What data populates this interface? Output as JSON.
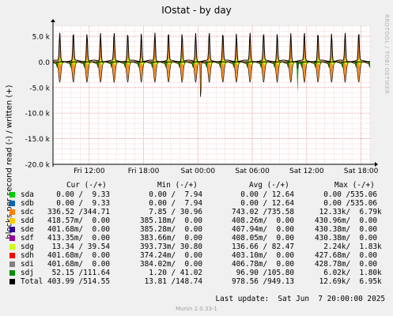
{
  "title": "IOstat - by day",
  "watermark": "RRDTOOL / TOBI OETIKER",
  "chart_data": {
    "type": "line",
    "ylabel": "blocks per second read (-) / written (+)",
    "ylim": [
      -20000,
      7000
    ],
    "yticks": [
      {
        "v": 5000,
        "label": "5.0 k"
      },
      {
        "v": 0,
        "label": "0.0"
      },
      {
        "v": -5000,
        "label": "-5.0 k"
      },
      {
        "v": -10000,
        "label": "-10.0 k"
      },
      {
        "v": -15000,
        "label": "-15.0 k"
      },
      {
        "v": -20000,
        "label": "-20.0 k"
      }
    ],
    "xticks": [
      "Fri 12:00",
      "Fri 18:00",
      "Sat 00:00",
      "Sat 06:00",
      "Sat 12:00",
      "Sat 18:00"
    ],
    "xlim_hours": [
      -4,
      31
    ],
    "xtick_hours": [
      0,
      6,
      12,
      18,
      24,
      30
    ],
    "grid": true,
    "spike_period_hours": 1.5,
    "total_write_peak": 5500,
    "sdc_read_peak": -4000,
    "sdc_read_max_spike": {
      "hour": 12.3,
      "value": -12300
    },
    "sdj_read_min_spike": {
      "hour": 23.0,
      "value": -6000
    }
  },
  "legend": {
    "headers": {
      "cur": "Cur (-/+)",
      "min": "Min (-/+)",
      "avg": "Avg (-/+)",
      "max": "Max (-/+)"
    },
    "rows": [
      {
        "name": "sda",
        "color": "#00cc00",
        "cur": "  0.00 /  9.33",
        "min": "  0.00 /  7.94",
        "avg": "  0.00 / 12.64",
        "max": "  0.00 /535.06"
      },
      {
        "name": "sdb",
        "color": "#0066b3",
        "cur": "  0.00 /  9.33",
        "min": "  0.00 /  7.94",
        "avg": "  0.00 / 12.64",
        "max": "  0.00 /535.06"
      },
      {
        "name": "sdc",
        "color": "#ff8000",
        "cur": "336.52 /344.71",
        "min": "  7.85 / 30.96",
        "avg": "743.02 /735.58",
        "max": " 12.33k/  6.79k"
      },
      {
        "name": "sdd",
        "color": "#ffcc00",
        "cur": "418.57m/  0.00",
        "min": "385.18m/  0.00",
        "avg": "408.26m/  0.00",
        "max": "430.96m/  0.00"
      },
      {
        "name": "sde",
        "color": "#330099",
        "cur": "401.68m/  0.00",
        "min": "385.28m/  0.00",
        "avg": "407.94m/  0.00",
        "max": "430.38m/  0.00"
      },
      {
        "name": "sdf",
        "color": "#990099",
        "cur": "413.35m/  0.00",
        "min": "383.66m/  0.00",
        "avg": "408.05m/  0.00",
        "max": "430.38m/  0.00"
      },
      {
        "name": "sdg",
        "color": "#ccff00",
        "cur": " 13.34 / 39.54",
        "min": "393.73m/ 30.80",
        "avg": "136.66 / 82.47",
        "max": "  2.24k/  1.83k"
      },
      {
        "name": "sdh",
        "color": "#ff0000",
        "cur": "401.68m/  0.00",
        "min": "374.24m/  0.00",
        "avg": "403.10m/  0.00",
        "max": "427.68m/  0.00"
      },
      {
        "name": "sdi",
        "color": "#808080",
        "cur": "401.68m/  0.00",
        "min": "384.02m/  0.00",
        "avg": "406.78m/  0.00",
        "max": "428.78m/  0.00"
      },
      {
        "name": "sdj",
        "color": "#008f00",
        "cur": " 52.15 /111.64",
        "min": "  1.20 / 41.02",
        "avg": " 96.90 /105.80",
        "max": "  6.02k/  1.80k"
      },
      {
        "name": "Total",
        "color": "#000000",
        "cur": "403.99 /514.55",
        "min": " 13.81 /148.74",
        "avg": "978.56 /949.13",
        "max": " 12.69k/  6.95k"
      }
    ]
  },
  "last_update": "Last update:  Sat Jun  7 20:00:00 2025",
  "munin_version": "Munin 2.0.33-1"
}
